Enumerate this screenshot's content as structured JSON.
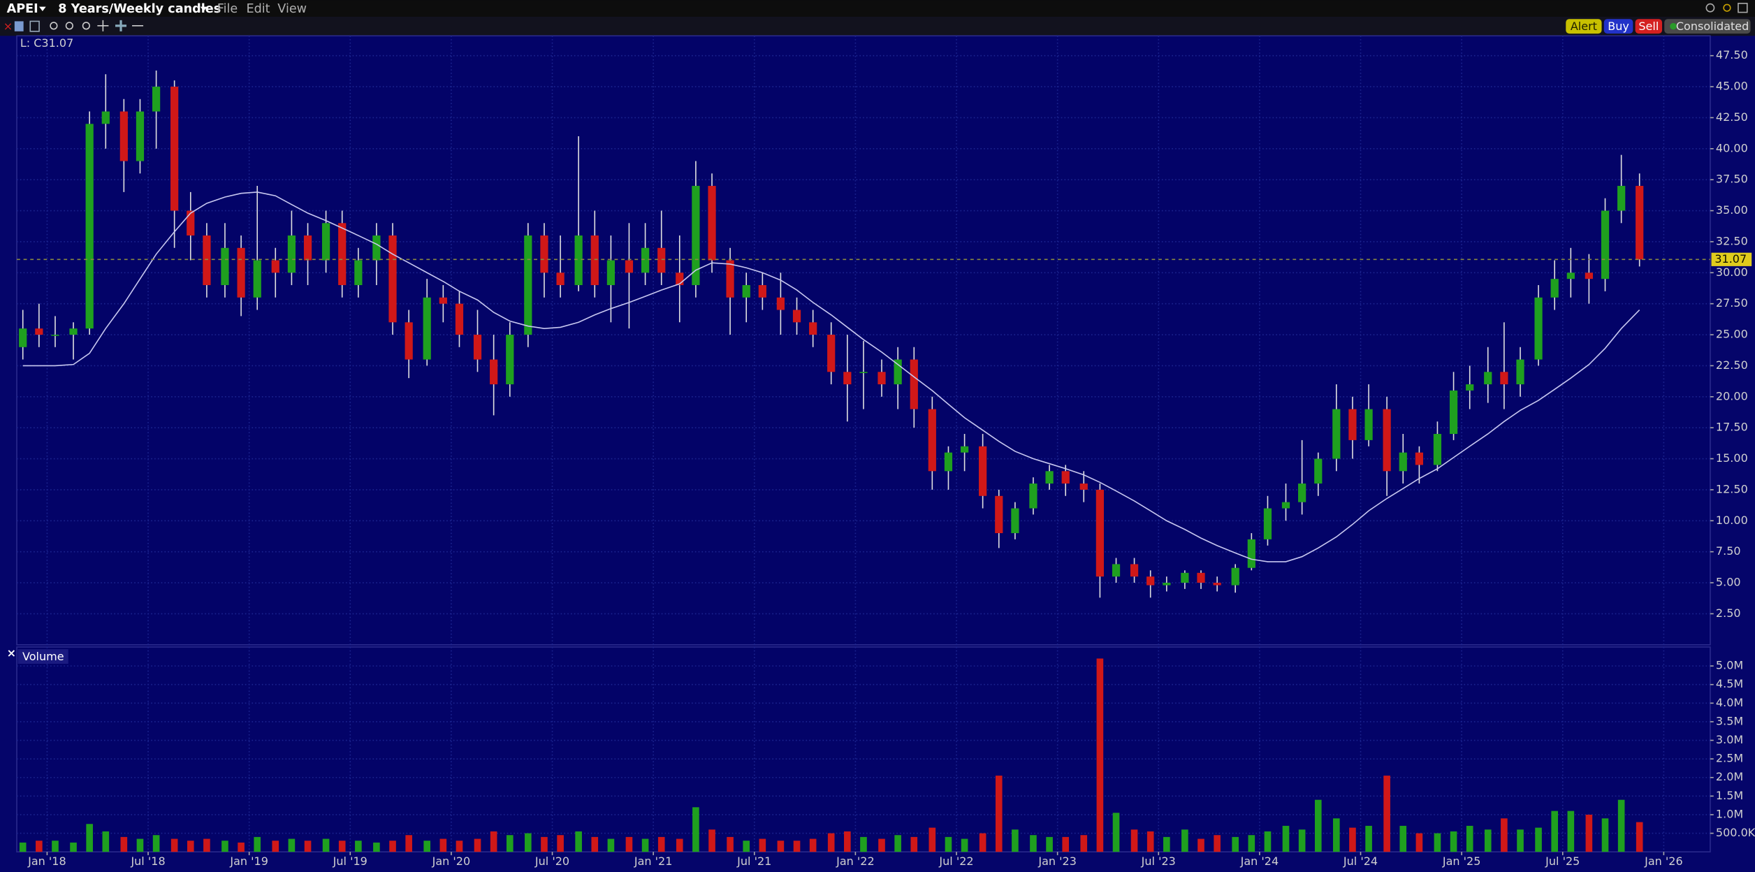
{
  "header": {
    "symbol": "APEI",
    "period": "8 Years/Weekly candles",
    "menu": [
      "File",
      "Edit",
      "View"
    ],
    "buttons": [
      "Alert",
      "Buy",
      "Sell",
      "Consolidated"
    ]
  },
  "chart_data": [
    {
      "type": "candlestick",
      "legend": "L: C31.07",
      "last_price": 31.07,
      "up_color": "#1fa01f",
      "down_color": "#d01818",
      "wick_color": "#e0e0e0",
      "moving_average_color": "#c8c8f0",
      "grid": true,
      "xlim": [
        2017.85,
        2026.23
      ],
      "xticks": [
        {
          "value": 2018,
          "label": "Jan '18"
        },
        {
          "value": 2018.5,
          "label": "Jul '18"
        },
        {
          "value": 2019,
          "label": "Jan '19"
        },
        {
          "value": 2019.5,
          "label": "Jul '19"
        },
        {
          "value": 2020,
          "label": "Jan '20"
        },
        {
          "value": 2020.5,
          "label": "Jul '20"
        },
        {
          "value": 2021,
          "label": "Jan '21"
        },
        {
          "value": 2021.5,
          "label": "Jul '21"
        },
        {
          "value": 2022,
          "label": "Jan '22"
        },
        {
          "value": 2022.5,
          "label": "Jul '22"
        },
        {
          "value": 2023,
          "label": "Jan '23"
        },
        {
          "value": 2023.5,
          "label": "Jul '23"
        },
        {
          "value": 2024,
          "label": "Jan '24"
        },
        {
          "value": 2024.5,
          "label": "Jul '24"
        },
        {
          "value": 2025,
          "label": "Jan '25"
        },
        {
          "value": 2025.5,
          "label": "Jul '25"
        },
        {
          "value": 2026,
          "label": "Jan '26"
        }
      ],
      "ylim": [
        0,
        49.1
      ],
      "yticks": [
        {
          "value": 2.5,
          "label": "2.50"
        },
        {
          "value": 5,
          "label": "5.00"
        },
        {
          "value": 7.5,
          "label": "7.50"
        },
        {
          "value": 10,
          "label": "10.00"
        },
        {
          "value": 12.5,
          "label": "12.50"
        },
        {
          "value": 15,
          "label": "15.00"
        },
        {
          "value": 17.5,
          "label": "17.50"
        },
        {
          "value": 20,
          "label": "20.00"
        },
        {
          "value": 22.5,
          "label": "22.50"
        },
        {
          "value": 25,
          "label": "25.00"
        },
        {
          "value": 27.5,
          "label": "27.50"
        },
        {
          "value": 30,
          "label": "30.00"
        },
        {
          "value": 32.5,
          "label": "32.50"
        },
        {
          "value": 35,
          "label": "35.00"
        },
        {
          "value": 37.5,
          "label": "37.50"
        },
        {
          "value": 40,
          "label": "40.00"
        },
        {
          "value": 42.5,
          "label": "42.50"
        },
        {
          "value": 45,
          "label": "45.00"
        },
        {
          "value": 47.5,
          "label": "47.50"
        }
      ],
      "x": [
        2017.88,
        2017.96,
        2018.04,
        2018.13,
        2018.21,
        2018.29,
        2018.38,
        2018.46,
        2018.54,
        2018.63,
        2018.71,
        2018.79,
        2018.88,
        2018.96,
        2019.04,
        2019.13,
        2019.21,
        2019.29,
        2019.38,
        2019.46,
        2019.54,
        2019.63,
        2019.71,
        2019.79,
        2019.88,
        2019.96,
        2020.04,
        2020.13,
        2020.21,
        2020.29,
        2020.38,
        2020.46,
        2020.54,
        2020.63,
        2020.71,
        2020.79,
        2020.88,
        2020.96,
        2021.04,
        2021.13,
        2021.21,
        2021.29,
        2021.38,
        2021.46,
        2021.54,
        2021.63,
        2021.71,
        2021.79,
        2021.88,
        2021.96,
        2022.04,
        2022.13,
        2022.21,
        2022.29,
        2022.38,
        2022.46,
        2022.54,
        2022.63,
        2022.71,
        2022.79,
        2022.88,
        2022.96,
        2023.04,
        2023.13,
        2023.21,
        2023.29,
        2023.38,
        2023.46,
        2023.54,
        2023.63,
        2023.71,
        2023.79,
        2023.88,
        2023.96,
        2024.04,
        2024.13,
        2024.21,
        2024.29,
        2024.38,
        2024.46,
        2024.54,
        2024.63,
        2024.71,
        2024.79,
        2024.88,
        2024.96,
        2025.04,
        2025.13,
        2025.21,
        2025.29,
        2025.38,
        2025.46,
        2025.54,
        2025.63,
        2025.71,
        2025.79,
        2025.88
      ],
      "open": [
        24,
        25.5,
        25,
        25,
        25.5,
        42,
        43,
        39,
        43,
        45,
        35,
        33,
        29,
        32,
        28,
        31,
        30,
        33,
        31,
        34,
        29,
        31,
        33,
        26,
        23,
        28,
        27.5,
        25,
        23,
        21,
        25,
        33,
        30,
        29,
        33,
        29,
        31,
        30,
        32,
        30,
        29,
        37,
        31,
        28,
        29,
        28,
        27,
        26,
        25,
        22,
        22,
        22,
        21,
        23,
        19,
        14,
        15.5,
        16,
        12,
        9,
        11,
        13,
        14,
        13,
        12.5,
        5.5,
        6.5,
        5.5,
        4.8,
        5,
        5.8,
        5,
        4.8,
        6.2,
        8.5,
        11,
        11.5,
        13,
        15,
        19,
        16.5,
        19,
        14,
        15.5,
        14.5,
        17,
        20.5,
        21,
        22,
        21,
        23,
        28,
        29.5,
        30,
        29.5,
        35,
        37
      ],
      "high": [
        27,
        27.5,
        26.5,
        26,
        43,
        46,
        44,
        44,
        46.3,
        45.5,
        36.5,
        34,
        34,
        33,
        37,
        32,
        35,
        34,
        35,
        35,
        32,
        34,
        34,
        27,
        29.5,
        29,
        28.5,
        27,
        25,
        26,
        34,
        34,
        33,
        41,
        35,
        33,
        34,
        34,
        35,
        33,
        39,
        38,
        32,
        30,
        30,
        30,
        28,
        27,
        26,
        25,
        24.5,
        23,
        24,
        24,
        20,
        16,
        17,
        17,
        12.5,
        11.5,
        13.5,
        14.5,
        14.5,
        14,
        13,
        7,
        7,
        6,
        5.5,
        6,
        6,
        5.5,
        6.5,
        9,
        12,
        13,
        16.5,
        15.5,
        21,
        20,
        21,
        20,
        17,
        16,
        18,
        22,
        22.5,
        24,
        26,
        24,
        29,
        31,
        32,
        31.5,
        36,
        39.5,
        38
      ],
      "low": [
        23,
        24,
        24,
        23,
        25,
        40,
        36.5,
        38,
        40,
        32,
        31,
        28,
        28,
        26.5,
        27,
        28,
        29,
        29,
        30,
        28,
        28,
        29,
        25,
        21.5,
        22.5,
        26,
        24,
        22,
        18.5,
        20,
        24,
        28,
        28,
        28.5,
        28,
        26,
        25.5,
        29,
        29,
        26,
        28,
        30,
        25,
        26,
        27,
        25,
        25,
        24,
        21,
        18,
        19,
        20,
        19,
        17.5,
        12.5,
        12.5,
        14,
        11,
        7.8,
        8.5,
        10.5,
        12.5,
        12,
        11.5,
        3.8,
        5,
        5,
        3.8,
        4.3,
        4.5,
        4.5,
        4.3,
        4.2,
        6,
        8,
        10,
        10.5,
        12,
        14,
        15,
        16,
        12,
        13,
        13,
        14,
        16.5,
        19,
        19.5,
        19,
        20,
        22.5,
        27,
        28,
        27.5,
        28.5,
        34,
        30.5
      ],
      "close": [
        25.5,
        25,
        25,
        25.5,
        42,
        43,
        39,
        43,
        45,
        35,
        33,
        29,
        32,
        28,
        31,
        30,
        33,
        31,
        34,
        29,
        31,
        33,
        26,
        23,
        28,
        27.5,
        25,
        23,
        21,
        25,
        33,
        30,
        29,
        33,
        29,
        31,
        30,
        32,
        30,
        29,
        37,
        31,
        28,
        29,
        28,
        27,
        26,
        25,
        22,
        21,
        22,
        21,
        23,
        19,
        14,
        15.5,
        16,
        12,
        9,
        11,
        13,
        14,
        13,
        12.5,
        5.5,
        6.5,
        5.5,
        4.8,
        5,
        5.8,
        5,
        4.8,
        6.2,
        8.5,
        11,
        11.5,
        13,
        15,
        19,
        16.5,
        19,
        14,
        15.5,
        14.5,
        17,
        20.5,
        21,
        22,
        21,
        23,
        28,
        29.5,
        30,
        29.5,
        35,
        37,
        31.07
      ],
      "moving_average": [
        22.5,
        22.5,
        22.5,
        22.6,
        23.5,
        25.5,
        27.5,
        29.5,
        31.5,
        33.3,
        34.8,
        35.6,
        36.1,
        36.4,
        36.5,
        36.2,
        35.5,
        34.8,
        34.2,
        33.6,
        33,
        32.3,
        31.5,
        30.8,
        30,
        29.3,
        28.5,
        27.8,
        26.8,
        26.1,
        25.7,
        25.5,
        25.6,
        26,
        26.6,
        27.1,
        27.6,
        28.1,
        28.6,
        29.1,
        30.2,
        30.8,
        30.7,
        30.4,
        30,
        29.4,
        28.6,
        27.6,
        26.6,
        25.6,
        24.6,
        23.6,
        22.6,
        21.6,
        20.5,
        19.4,
        18.3,
        17.3,
        16.4,
        15.6,
        15,
        14.6,
        14.2,
        13.7,
        13.1,
        12.4,
        11.6,
        10.8,
        10,
        9.3,
        8.6,
        8,
        7.4,
        6.9,
        6.7,
        6.7,
        7.1,
        7.8,
        8.7,
        9.7,
        10.8,
        11.8,
        12.6,
        13.4,
        14.2,
        15.1,
        16,
        17,
        18,
        18.9,
        19.7,
        20.6,
        21.5,
        22.6,
        23.9,
        25.5,
        27
      ]
    },
    {
      "type": "bar",
      "title": "Volume",
      "up_color": "#1fa01f",
      "down_color": "#d01818",
      "grid": true,
      "ylim": [
        0,
        5510000
      ],
      "yticks": [
        {
          "value": 500000,
          "label": "500.0K"
        },
        {
          "value": 1000000,
          "label": "1.0M"
        },
        {
          "value": 1500000,
          "label": "1.5M"
        },
        {
          "value": 2000000,
          "label": "2.0M"
        },
        {
          "value": 2500000,
          "label": "2.5M"
        },
        {
          "value": 3000000,
          "label": "3.0M"
        },
        {
          "value": 3500000,
          "label": "3.5M"
        },
        {
          "value": 4000000,
          "label": "4.0M"
        },
        {
          "value": 4500000,
          "label": "4.5M"
        },
        {
          "value": 5000000,
          "label": "5.0M"
        }
      ],
      "values": [
        250000,
        300000,
        300000,
        250000,
        750000,
        550000,
        400000,
        350000,
        450000,
        350000,
        300000,
        350000,
        300000,
        250000,
        400000,
        300000,
        350000,
        300000,
        350000,
        300000,
        300000,
        250000,
        300000,
        450000,
        300000,
        350000,
        300000,
        350000,
        550000,
        450000,
        500000,
        400000,
        450000,
        550000,
        400000,
        350000,
        400000,
        350000,
        400000,
        350000,
        1200000,
        600000,
        400000,
        300000,
        350000,
        300000,
        300000,
        350000,
        500000,
        550000,
        400000,
        350000,
        450000,
        400000,
        650000,
        400000,
        350000,
        500000,
        2050000,
        600000,
        450000,
        400000,
        400000,
        450000,
        5200000,
        1050000,
        600000,
        550000,
        400000,
        600000,
        350000,
        450000,
        400000,
        450000,
        550000,
        700000,
        600000,
        1400000,
        900000,
        650000,
        700000,
        2050000,
        700000,
        500000,
        500000,
        550000,
        700000,
        600000,
        900000,
        600000,
        650000,
        1100000,
        1100000,
        1000000,
        900000,
        1400000,
        800000
      ]
    }
  ]
}
